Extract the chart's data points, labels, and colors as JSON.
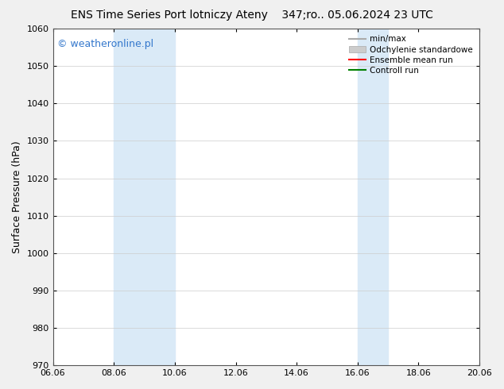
{
  "title_left": "ENS Time Series Port lotniczy Ateny",
  "title_right": "347;ro.. 05.06.2024 23 UTC",
  "ylabel": "Surface Pressure (hPa)",
  "xlabel_ticks": [
    "06.06",
    "08.06",
    "10.06",
    "12.06",
    "14.06",
    "16.06",
    "18.06",
    "20.06"
  ],
  "xtick_positions": [
    0,
    2,
    4,
    6,
    8,
    10,
    12,
    14
  ],
  "xlim": [
    0,
    14
  ],
  "ylim": [
    970,
    1060
  ],
  "yticks": [
    970,
    980,
    990,
    1000,
    1010,
    1020,
    1030,
    1040,
    1050,
    1060
  ],
  "background_color": "#f0f0f0",
  "plot_bg_color": "#ffffff",
  "shaded_bands": [
    {
      "x_start": 2.0,
      "x_end": 4.0,
      "color": "#daeaf7"
    },
    {
      "x_start": 10.0,
      "x_end": 11.0,
      "color": "#daeaf7"
    }
  ],
  "watermark_text": "© weatheronline.pl",
  "watermark_color": "#3377cc",
  "watermark_fontsize": 9,
  "legend_entries": [
    {
      "label": "min/max",
      "color": "#aaaaaa",
      "lw": 1.5,
      "type": "line"
    },
    {
      "label": "Odchylenie standardowe",
      "color": "#cccccc",
      "lw": 6,
      "type": "patch"
    },
    {
      "label": "Ensemble mean run",
      "color": "#ff0000",
      "lw": 1.5,
      "type": "line"
    },
    {
      "label": "Controll run",
      "color": "#008000",
      "lw": 1.5,
      "type": "line"
    }
  ],
  "title_fontsize": 10,
  "tick_fontsize": 8,
  "ylabel_fontsize": 9,
  "legend_fontsize": 7.5
}
